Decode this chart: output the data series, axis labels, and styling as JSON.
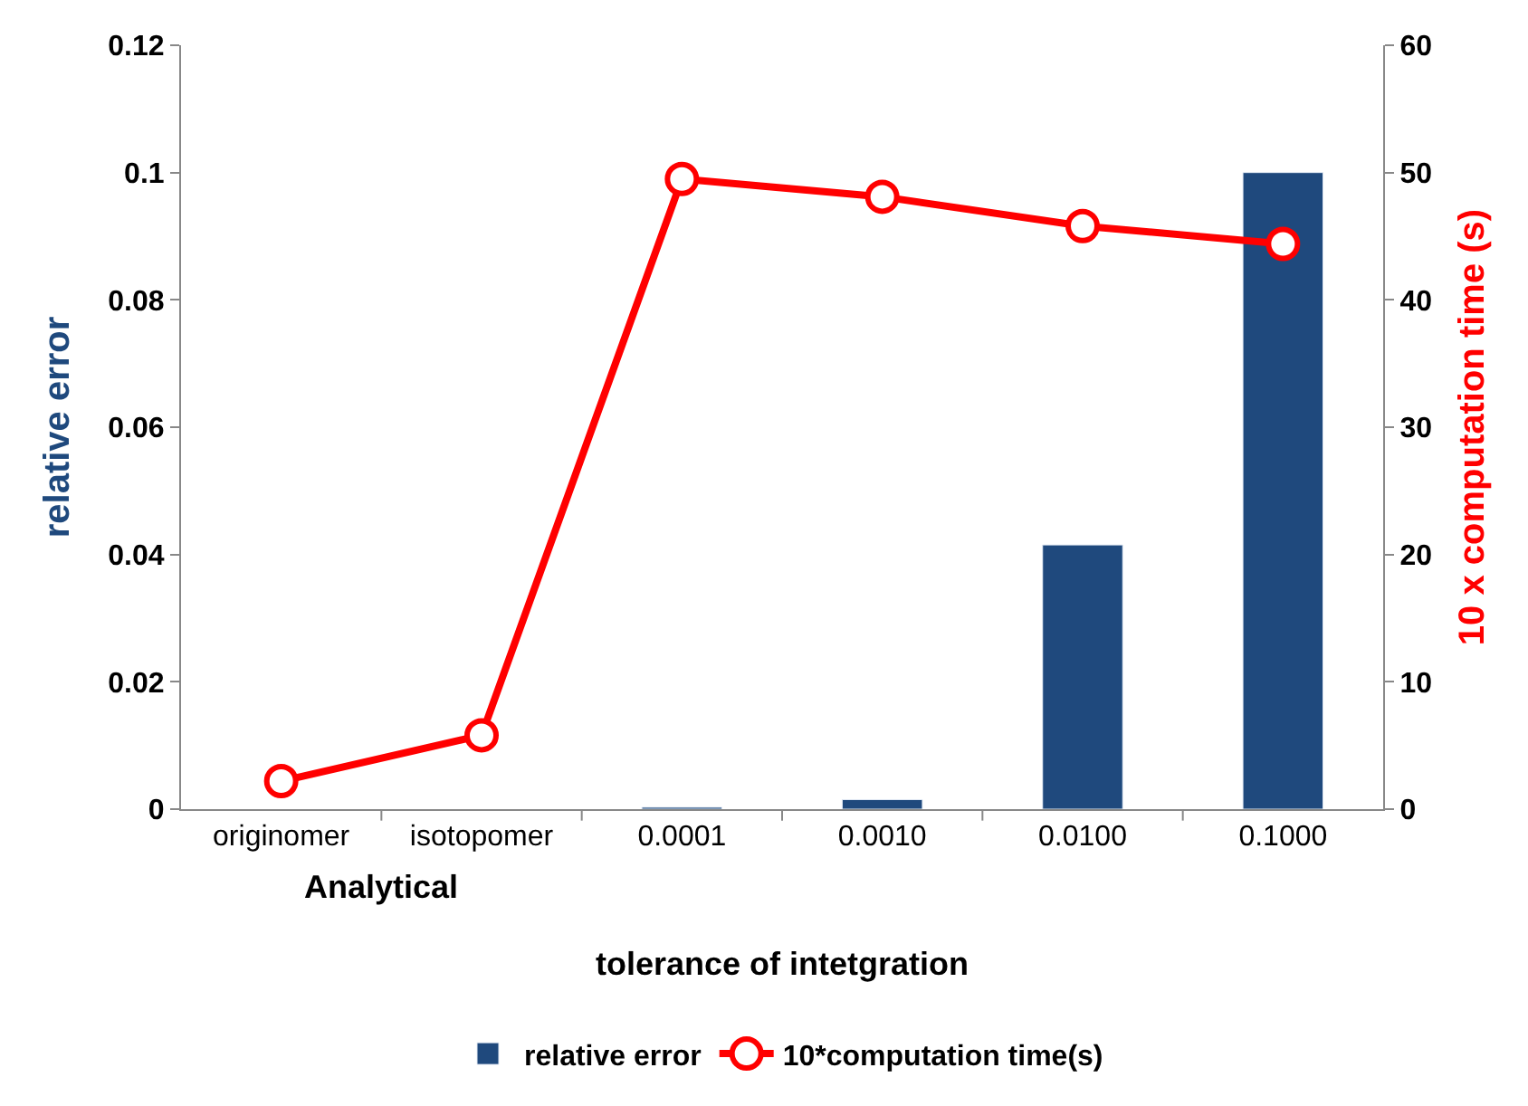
{
  "chart_data": {
    "type": "bar",
    "categories": [
      "originomer",
      "isotopomer",
      "0.0001",
      "0.0010",
      "0.0100",
      "0.1000"
    ],
    "xlabel": "tolerance of intetgration",
    "ylabel": "relative error",
    "y2label": "10 x computation time (s)",
    "annotations": [
      "Analytical"
    ],
    "series": [
      {
        "name": "relative error",
        "color": "#1f497d",
        "values": [
          null,
          null,
          0.0003,
          0.0015,
          0.0415,
          0.1
        ]
      },
      {
        "name": "10*computation time(s)",
        "type": "line",
        "axis": "y2",
        "color": "#ff0000",
        "marker": "circle",
        "line_style": "solid",
        "values": [
          2.2,
          5.8,
          49.5,
          48.1,
          45.8,
          44.4
        ]
      }
    ],
    "ylim": [
      0,
      0.12
    ],
    "yticks": [
      {
        "value": 0,
        "label": "0"
      },
      0.02,
      0.04,
      0.06,
      0.08,
      0.1,
      0.12
    ],
    "y2lim": [
      0,
      60
    ],
    "y2ticks": [
      0,
      10,
      20,
      30,
      40,
      50,
      60
    ],
    "legend": "bottom"
  }
}
